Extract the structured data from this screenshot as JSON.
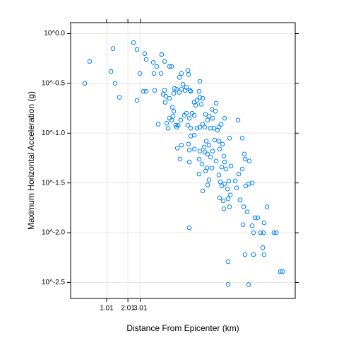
{
  "chart_data": {
    "type": "scatter",
    "x_label": "Distance From Epicenter (km)",
    "y_label": "Maximum Horizontal Acceleration (g)",
    "xlim": [
      -0.51,
      2.67
    ],
    "ylim": [
      -2.66,
      0.11
    ],
    "xticks": [
      {
        "value": 0,
        "label": "1.01"
      },
      {
        "value": 0.301,
        "label": "2.01"
      },
      {
        "value": 0.477,
        "label": "3.01"
      }
    ],
    "yticks": [
      {
        "value": 0,
        "label": "10^0.0"
      },
      {
        "value": -0.5,
        "label": "10^-0.5"
      },
      {
        "value": -1,
        "label": "10^-1.0"
      },
      {
        "value": -1.5,
        "label": "10^-1.5"
      },
      {
        "value": -2,
        "label": "10^-2.0"
      },
      {
        "value": -2.5,
        "label": "10^-2.5"
      }
    ],
    "grid": true,
    "color": "#0080ff",
    "x": [
      -0.31,
      -0.24,
      0.06,
      0.09,
      0.12,
      0.18,
      0.38,
      0.43,
      0.43,
      0.47,
      0.52,
      0.56,
      0.54,
      0.56,
      0.66,
      0.67,
      0.71,
      0.78,
      0.82,
      0.77,
      0.68,
      0.82,
      0.8,
      0.89,
      0.92,
      1.03,
      1.06,
      1.15,
      1.16,
      0.96,
      0.95,
      0.99,
      1.03,
      1.06,
      1.11,
      1.18,
      1.19,
      1.08,
      1.13,
      1.32,
      1.31,
      0.84,
      0.83,
      0.89,
      0.93,
      0.95,
      0.94,
      0.89,
      0.92,
      0.85,
      0.87,
      0.73,
      0.98,
      0.99,
      1.01,
      1.05,
      1.1,
      1.13,
      1.17,
      1.21,
      1.24,
      1.26,
      1.24,
      1.28,
      1.34,
      1.36,
      1.32,
      1.4,
      1.45,
      1.54,
      1.55,
      1.49,
      1.5,
      1.15,
      1.19,
      1.28,
      1.32,
      1.36,
      1.39,
      1.43,
      1.47,
      1.52,
      1.57,
      1.59,
      1.62,
      1.67,
      1.86,
      1.0,
      1.06,
      1.16,
      1.19,
      1.24,
      1.17,
      1.24,
      1.32,
      1.38,
      1.41,
      1.45,
      1.39,
      1.43,
      1.47,
      1.5,
      1.53,
      1.59,
      1.6,
      1.64,
      1.66,
      1.74,
      1.69,
      1.67,
      1.04,
      1.17,
      1.31,
      1.35,
      1.42,
      1.4,
      1.31,
      1.45,
      1.49,
      1.55,
      1.59,
      1.63,
      1.76,
      1.92,
      1.95,
      1.96,
      1.92,
      1.87,
      2.02,
      1.61,
      1.63,
      1.67,
      1.71,
      1.73,
      1.36,
      1.43,
      1.82,
      1.84,
      1.75,
      1.6,
      1.65,
      1.66,
      1.72,
      1.97,
      2.01,
      2.06,
      1.74,
      1.89,
      1.94,
      1.99,
      2.27,
      2.1,
      2.14,
      2.23,
      2.06,
      2.08,
      2.18,
      2.22,
      2.37,
      2.4,
      1.93,
      1.17,
      1.96,
      2.08,
      2.21,
      2.23,
      1.72,
      2.46,
      2.49,
      1.72,
      2.01
    ],
    "y": [
      -0.5,
      -0.28,
      -0.38,
      -0.15,
      -0.5,
      -0.64,
      -0.09,
      -0.16,
      -0.67,
      -0.4,
      -0.58,
      -0.58,
      -0.2,
      -0.26,
      -0.29,
      -0.4,
      -0.33,
      -0.21,
      -0.28,
      -0.4,
      -0.57,
      -0.57,
      -0.61,
      -0.33,
      -0.33,
      -0.44,
      -0.4,
      -0.37,
      -0.41,
      -0.55,
      -0.6,
      -0.56,
      -0.59,
      -0.56,
      -0.57,
      -0.57,
      -0.58,
      -0.51,
      -0.54,
      -0.48,
      -0.58,
      -0.63,
      -0.69,
      -0.65,
      -0.74,
      -0.78,
      -0.83,
      -0.85,
      -0.87,
      -0.9,
      -0.95,
      -0.91,
      -0.92,
      -0.94,
      -0.92,
      -0.87,
      -0.82,
      -0.8,
      -0.85,
      -0.8,
      -0.82,
      -0.72,
      -0.69,
      -0.67,
      -0.71,
      -0.65,
      -0.64,
      -0.81,
      -0.83,
      -0.78,
      -0.7,
      -0.76,
      -0.85,
      -0.92,
      -0.95,
      -0.95,
      -0.94,
      -0.91,
      -0.94,
      -0.87,
      -0.95,
      -0.95,
      -0.97,
      -0.94,
      -0.91,
      -0.85,
      -0.87,
      -1.15,
      -1.12,
      -1.11,
      -1.03,
      -1.02,
      -1.17,
      -1.16,
      -1.18,
      -1.14,
      -1.08,
      -1.12,
      -1.19,
      -1.21,
      -1.24,
      -1.18,
      -1.07,
      -1.08,
      -1.16,
      -1.11,
      -1.23,
      -1.05,
      -1.36,
      -1.29,
      -1.26,
      -1.29,
      -1.26,
      -1.31,
      -1.35,
      -1.38,
      -1.41,
      -1.47,
      -1.35,
      -1.28,
      -1.42,
      -1.34,
      -1.33,
      -1.05,
      -1.21,
      -1.26,
      -1.36,
      -1.41,
      -1.28,
      -1.49,
      -1.53,
      -1.51,
      -1.56,
      -1.48,
      -1.58,
      -1.52,
      -1.48,
      -1.55,
      -1.62,
      -1.65,
      -1.68,
      -1.76,
      -1.66,
      -1.53,
      -1.51,
      -1.5,
      -1.74,
      -1.67,
      -1.74,
      -1.79,
      -1.74,
      -1.85,
      -1.85,
      -1.9,
      -1.93,
      -2.0,
      -2.0,
      -2.0,
      -2.0,
      -2.0,
      -1.92,
      -1.95,
      -2.22,
      -2.22,
      -2.15,
      -2.22,
      -2.29,
      -2.39,
      -2.39,
      -2.52,
      -2.52
    ]
  }
}
